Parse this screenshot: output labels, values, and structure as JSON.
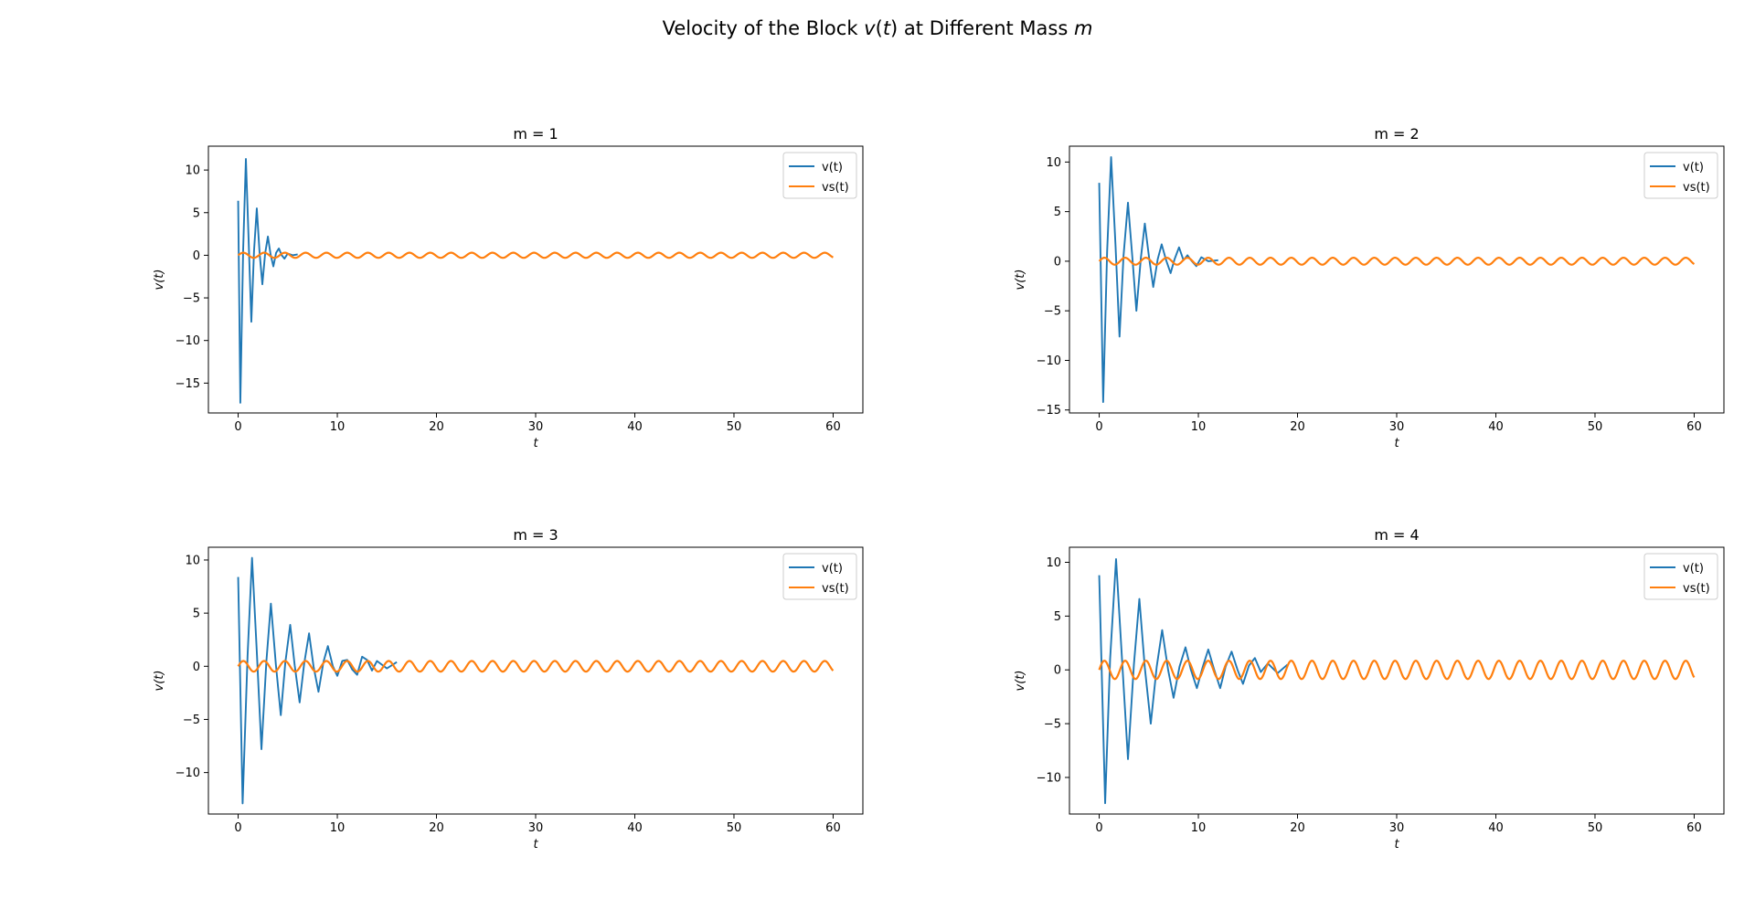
{
  "figure": {
    "title_prefix": "Velocity of the Block ",
    "title_var1": "v",
    "title_var1_open": "(",
    "title_var1_arg": "t",
    "title_var1_close": ")",
    "title_middle": " at Different Mass ",
    "title_var2": "m"
  },
  "colors": {
    "v": "#1f77b4",
    "vs": "#ff7f0e",
    "axes": "#000000",
    "background": "#ffffff"
  },
  "chart_data": [
    {
      "type": "line",
      "title": "m = 1",
      "xlabel": "t",
      "ylabel": "v(t)",
      "xlim": [
        -3,
        63
      ],
      "ylim": [
        -18.5,
        12.8
      ],
      "xticks": [
        0,
        10,
        20,
        30,
        40,
        50,
        60
      ],
      "yticks": [
        -15,
        -10,
        -5,
        0,
        5,
        10
      ],
      "legend": {
        "placement": "top-right",
        "entries": [
          "v(t)",
          "vs(t)"
        ]
      },
      "grid": false,
      "series": [
        {
          "name": "v(t)",
          "x": [
            0,
            0.22,
            0.5,
            0.78,
            1.05,
            1.33,
            1.6,
            1.88,
            2.16,
            2.44,
            2.72,
            3.0,
            3.27,
            3.55,
            3.83,
            4.11,
            4.39,
            4.67,
            5.0,
            5.5,
            6.0
          ],
          "y": [
            6.4,
            -17.3,
            0.5,
            11.3,
            2.0,
            -7.8,
            0.5,
            5.5,
            0.3,
            -3.4,
            0.2,
            2.2,
            0.1,
            -1.3,
            0.3,
            0.8,
            0.0,
            -0.4,
            0.2,
            0.0,
            0.1
          ]
        },
        {
          "name": "vs(t)",
          "amplitude": 0.3,
          "period": 2.094,
          "phase": 0.0,
          "t_range": [
            0,
            60
          ]
        }
      ]
    },
    {
      "type": "line",
      "title": "m = 2",
      "xlabel": "t",
      "ylabel": "v(t)",
      "xlim": [
        -3,
        63
      ],
      "ylim": [
        -15.3,
        11.6
      ],
      "xticks": [
        0,
        10,
        20,
        30,
        40,
        50,
        60
      ],
      "yticks": [
        -15,
        -10,
        -5,
        0,
        5,
        10
      ],
      "legend": {
        "placement": "top-right",
        "entries": [
          "v(t)",
          "vs(t)"
        ]
      },
      "grid": false,
      "series": [
        {
          "name": "v(t)",
          "x": [
            0,
            0.4,
            0.8,
            1.2,
            1.65,
            2.05,
            2.45,
            2.9,
            3.35,
            3.75,
            4.2,
            4.6,
            5.05,
            5.45,
            5.9,
            6.3,
            6.75,
            7.2,
            7.6,
            8.05,
            8.5,
            8.9,
            9.35,
            9.8,
            10.3,
            11.0,
            12.0
          ],
          "y": [
            7.9,
            -14.2,
            1.0,
            10.5,
            1.5,
            -7.6,
            0.5,
            5.9,
            0.3,
            -5.0,
            0.3,
            3.8,
            0.2,
            -2.6,
            0.2,
            1.7,
            0.1,
            -1.2,
            0.2,
            1.4,
            0.1,
            0.6,
            0.0,
            -0.5,
            0.4,
            0.0,
            0.1
          ]
        },
        {
          "name": "vs(t)",
          "amplitude": 0.35,
          "period": 2.094,
          "phase": 0.0,
          "t_range": [
            0,
            60
          ]
        }
      ]
    },
    {
      "type": "line",
      "title": "m = 3",
      "xlabel": "t",
      "ylabel": "v(t)",
      "xlim": [
        -3,
        63
      ],
      "ylim": [
        -13.9,
        11.2
      ],
      "xticks": [
        0,
        10,
        20,
        30,
        40,
        50,
        60
      ],
      "yticks": [
        -10,
        -5,
        0,
        5,
        10
      ],
      "legend": {
        "placement": "top-right",
        "entries": [
          "v(t)",
          "vs(t)"
        ]
      },
      "grid": false,
      "series": [
        {
          "name": "v(t)",
          "x": [
            0,
            0.45,
            0.95,
            1.4,
            1.9,
            2.35,
            2.85,
            3.3,
            3.8,
            4.3,
            4.75,
            5.25,
            5.7,
            6.2,
            6.65,
            7.15,
            7.6,
            8.1,
            8.6,
            9.05,
            9.55,
            10.0,
            10.5,
            11.0,
            11.5,
            12.0,
            12.5,
            13.0,
            13.5,
            14.0,
            15.0,
            16.0
          ],
          "y": [
            8.4,
            -12.9,
            1.0,
            10.2,
            1.0,
            -7.8,
            0.5,
            5.9,
            0.2,
            -4.6,
            0.3,
            3.9,
            0.1,
            -3.4,
            0.2,
            3.1,
            0.0,
            -2.4,
            0.4,
            1.9,
            0.0,
            -0.9,
            0.5,
            0.6,
            -0.3,
            -0.8,
            0.9,
            0.6,
            -0.4,
            0.5,
            -0.2,
            0.4
          ]
        },
        {
          "name": "vs(t)",
          "amplitude": 0.5,
          "period": 2.094,
          "phase": 0.0,
          "t_range": [
            0,
            60
          ]
        }
      ]
    },
    {
      "type": "line",
      "title": "m = 4",
      "xlabel": "t",
      "ylabel": "v(t)",
      "xlim": [
        -3,
        63
      ],
      "ylim": [
        -13.4,
        11.4
      ],
      "xticks": [
        0,
        10,
        20,
        30,
        40,
        50,
        60
      ],
      "yticks": [
        -10,
        -5,
        0,
        5,
        10
      ],
      "legend": {
        "placement": "top-right",
        "entries": [
          "v(t)",
          "vs(t)"
        ]
      },
      "grid": false,
      "series": [
        {
          "name": "v(t)",
          "x": [
            0,
            0.6,
            1.1,
            1.7,
            2.3,
            2.9,
            3.5,
            4.05,
            4.6,
            5.2,
            5.8,
            6.35,
            6.95,
            7.5,
            8.1,
            8.7,
            9.25,
            9.85,
            10.45,
            11.0,
            11.6,
            12.2,
            12.75,
            13.35,
            13.95,
            14.5,
            15.1,
            15.7,
            16.3,
            17.0,
            18.0,
            19.0
          ],
          "y": [
            8.8,
            -12.4,
            1.0,
            10.3,
            1.0,
            -8.3,
            0.5,
            6.6,
            0.2,
            -5.0,
            0.3,
            3.7,
            0.0,
            -2.6,
            0.3,
            2.1,
            0.0,
            -1.7,
            0.3,
            1.9,
            0.0,
            -1.7,
            0.3,
            1.7,
            0.0,
            -1.3,
            0.4,
            1.1,
            -0.2,
            0.6,
            -0.3,
            0.5
          ]
        },
        {
          "name": "vs(t)",
          "amplitude": 0.85,
          "period": 2.094,
          "phase": 0.0,
          "t_range": [
            0,
            60
          ]
        }
      ]
    }
  ]
}
